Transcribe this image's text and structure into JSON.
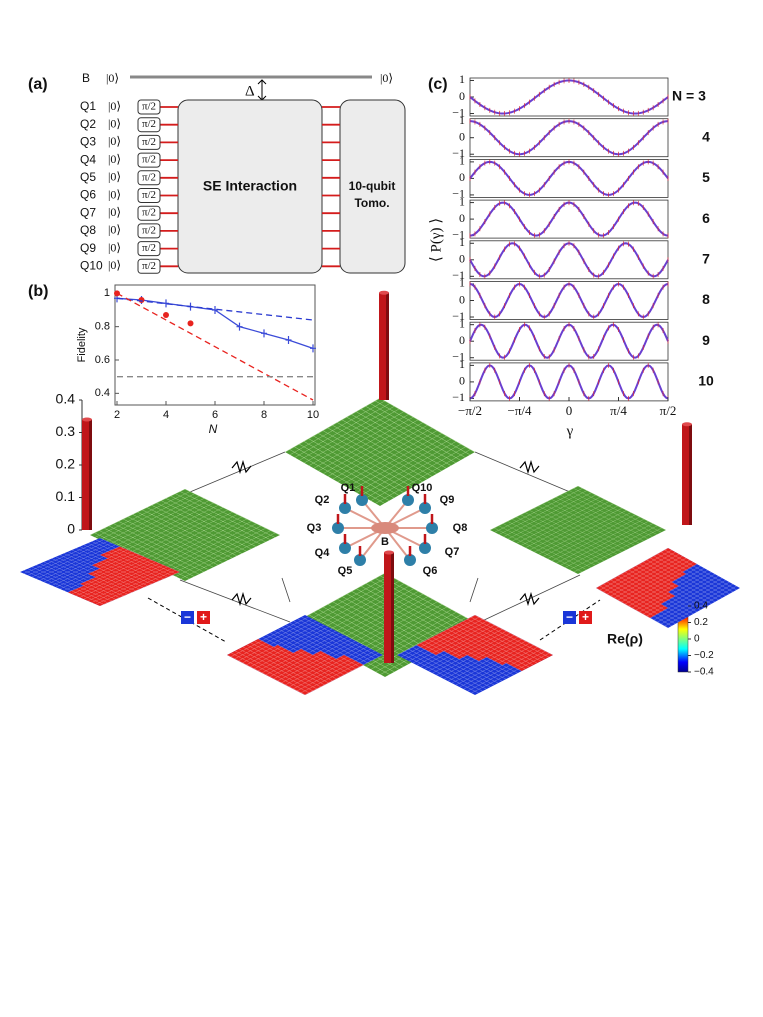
{
  "panel_a": {
    "label": "(a)",
    "bath": "B",
    "ket": "|0⟩",
    "gate": "π/2",
    "delta": "Δ",
    "qubits": [
      "Q1",
      "Q2",
      "Q3",
      "Q4",
      "Q5",
      "Q6",
      "Q7",
      "Q8",
      "Q9",
      "Q10"
    ],
    "interaction": "SE Interaction",
    "tomo_line1": "10-qubit",
    "tomo_line2": "Tomo."
  },
  "panel_b": {
    "type": "line",
    "label": "(b)",
    "xlabel": "N",
    "ylabel": "Fidelity",
    "xlim": [
      2,
      10
    ],
    "ylim": [
      0.33,
      1.05
    ],
    "xticks": [
      2,
      4,
      6,
      8,
      10
    ],
    "yticks": [
      0.4,
      0.6,
      0.8,
      1
    ],
    "series": [
      {
        "color": "#3b4bd8",
        "line": true,
        "dash": false,
        "marker": "plus",
        "x": [
          2,
          3,
          4,
          5,
          6,
          7,
          8,
          9,
          10
        ],
        "values": [
          0.97,
          0.96,
          0.94,
          0.92,
          0.9,
          0.8,
          0.76,
          0.72,
          0.67
        ]
      },
      {
        "color": "#e8231f",
        "line": false,
        "dash": false,
        "marker": "dot",
        "x": [
          2,
          3,
          4,
          5
        ],
        "values": [
          1.0,
          0.96,
          0.87,
          0.82
        ]
      },
      {
        "color": "#2a3ad0",
        "line": true,
        "dash": true,
        "marker": "none",
        "x": [
          2,
          10
        ],
        "values": [
          0.97,
          0.84
        ]
      },
      {
        "color": "#e8231f",
        "line": true,
        "dash": true,
        "marker": "none",
        "x": [
          2,
          10
        ],
        "values": [
          1.0,
          0.36
        ]
      },
      {
        "color": "#888888",
        "line": true,
        "dash": true,
        "marker": "none",
        "x": [
          2,
          10
        ],
        "values": [
          0.5,
          0.5
        ]
      }
    ]
  },
  "panel_c": {
    "type": "line",
    "label": "(c)",
    "xlabel": "γ",
    "ylabel": "⟨ P(γ) ⟩",
    "xlim": [
      -1.5708,
      1.5708
    ],
    "ylim": [
      -1.15,
      1.15
    ],
    "xticks": [
      {
        "value": -1.5708,
        "label": "−π/2"
      },
      {
        "value": -0.7854,
        "label": "−π/4"
      },
      0,
      {
        "value": 0.7854,
        "label": "π/4"
      },
      {
        "value": 1.5708,
        "label": "π/2"
      }
    ],
    "yticks": [
      1,
      0,
      {
        "value": -1,
        "label": "−1"
      }
    ],
    "rows": [
      {
        "value": 3,
        "label": "N = 3"
      },
      4,
      5,
      6,
      7,
      8,
      9,
      10
    ],
    "color": "#6a3fd0"
  },
  "panel_d": {
    "type": "bar",
    "ylim": [
      0,
      0.4
    ],
    "yticks": [
      0,
      0.1,
      0.2,
      0.3,
      0.4
    ],
    "values": [
      0.34,
      0.33,
      0.31,
      0.34
    ],
    "color": "#c0161a",
    "bath": "B",
    "qubits": [
      "Q1",
      "Q2",
      "Q3",
      "Q4",
      "Q5",
      "Q6",
      "Q7",
      "Q8",
      "Q9",
      "Q10"
    ],
    "minus": "−",
    "plus": "+",
    "colorbar": {
      "label": "Re(ρ)",
      "clim": [
        -0.4,
        0.4
      ],
      "ticks": [
        0.4,
        0.2,
        0,
        {
          "value": -0.2,
          "label": "−0.2"
        },
        {
          "value": -0.4,
          "label": "−0.4"
        }
      ]
    }
  }
}
